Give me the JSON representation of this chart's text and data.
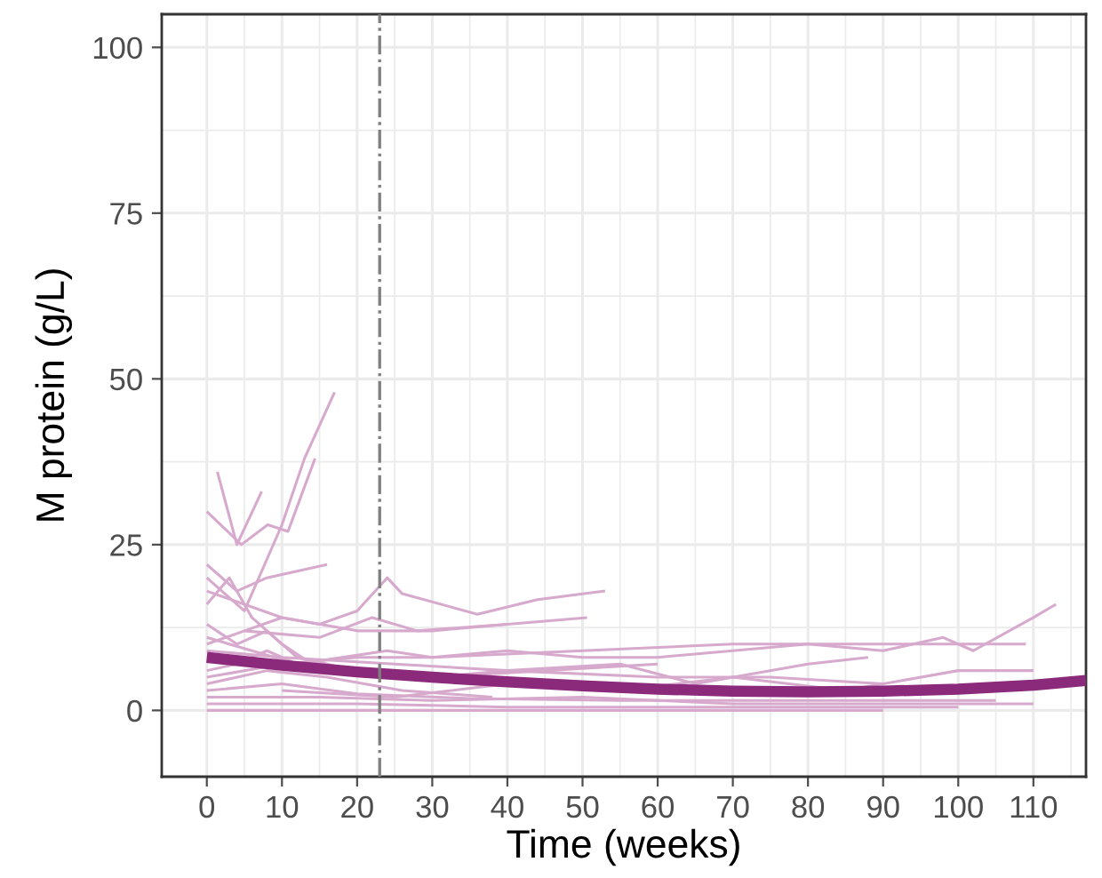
{
  "chart_data": {
    "type": "line",
    "xlabel": "Time (weeks)",
    "ylabel": "M protein (g/L)",
    "xlim": [
      -6,
      117
    ],
    "ylim": [
      -10,
      105
    ],
    "xticks": [
      0,
      10,
      20,
      30,
      40,
      50,
      60,
      70,
      80,
      90,
      100,
      110
    ],
    "yticks": [
      0,
      25,
      50,
      75,
      100
    ],
    "grid": true,
    "ref_lines": [
      {
        "axis": "x",
        "value": 23,
        "color": "#7f7f7f",
        "line_style": "dashdot"
      }
    ],
    "series": [
      {
        "color": "#d6a9cd",
        "x": [
          0,
          5,
          10,
          13,
          17
        ],
        "values": [
          20,
          15,
          28,
          38,
          48
        ]
      },
      {
        "color": "#d6a9cd",
        "x": [
          0,
          4.6,
          8.1,
          10.8,
          14.4
        ],
        "values": [
          30,
          25,
          28,
          27,
          38
        ]
      },
      {
        "color": "#d6a9cd",
        "x": [
          1.4,
          4,
          7.3
        ],
        "values": [
          36,
          25,
          33
        ]
      },
      {
        "color": "#d6a9cd",
        "x": [
          0,
          4,
          8,
          12,
          16
        ],
        "values": [
          22,
          18,
          20,
          21,
          22
        ]
      },
      {
        "color": "#d6a9cd",
        "x": [
          0,
          5,
          10,
          15,
          20,
          24,
          26,
          36,
          44,
          53
        ],
        "values": [
          10,
          12,
          14,
          13,
          15,
          20,
          17.6,
          14.5,
          16.7,
          18
        ]
      },
      {
        "color": "#d6a9cd",
        "x": [
          0,
          4,
          8,
          12,
          18,
          24,
          30,
          40,
          50,
          60,
          70,
          80,
          90,
          98,
          102,
          110,
          113
        ],
        "values": [
          6,
          7,
          9,
          7,
          8,
          9,
          8,
          9,
          8,
          8,
          9,
          10,
          9,
          11,
          9,
          14,
          16
        ]
      },
      {
        "color": "#d6a9cd",
        "x": [
          0,
          10,
          20,
          30,
          50,
          70,
          90,
          109
        ],
        "values": [
          5,
          7,
          8,
          8,
          9,
          10,
          10,
          10
        ]
      },
      {
        "color": "#d6a9cd",
        "x": [
          0,
          10,
          20,
          30,
          40,
          50.6
        ],
        "values": [
          18,
          14,
          12,
          12,
          13,
          14
        ]
      },
      {
        "color": "#d6a9cd",
        "x": [
          0,
          3,
          6,
          10,
          14
        ],
        "values": [
          16,
          20,
          14,
          10,
          7
        ]
      },
      {
        "color": "#d6a9cd",
        "x": [
          0,
          4,
          8,
          12,
          20,
          30
        ],
        "values": [
          13,
          10,
          12,
          8,
          6,
          5
        ]
      },
      {
        "color": "#d6a9cd",
        "x": [
          0,
          10,
          25,
          40,
          60,
          75,
          90
        ],
        "values": [
          9,
          8,
          7,
          6,
          5,
          5,
          4
        ]
      },
      {
        "color": "#d6a9cd",
        "x": [
          0,
          10,
          20,
          35,
          55,
          75,
          95,
          105
        ],
        "values": [
          3,
          4,
          2.5,
          1.8,
          1.5,
          1.5,
          1.5,
          1.5
        ]
      },
      {
        "color": "#d6a9cd",
        "x": [
          0,
          15,
          30,
          50,
          70,
          90,
          110
        ],
        "values": [
          2,
          2,
          1.5,
          2,
          1,
          1,
          1
        ]
      },
      {
        "color": "#d6a9cd",
        "x": [
          0,
          20,
          40,
          60,
          80,
          100
        ],
        "values": [
          1,
          1,
          0.5,
          0.5,
          0.5,
          0.5
        ]
      },
      {
        "color": "#d6a9cd",
        "x": [
          0,
          10,
          30,
          50,
          70,
          90
        ],
        "values": [
          0,
          0,
          0,
          0,
          0,
          0
        ]
      },
      {
        "color": "#d6a9cd",
        "x": [
          0,
          6,
          12,
          20,
          30,
          45,
          60
        ],
        "values": [
          11,
          9,
          7,
          6,
          5,
          6,
          7
        ]
      },
      {
        "color": "#d6a9cd",
        "x": [
          20,
          30,
          40,
          55,
          65,
          80,
          88
        ],
        "values": [
          6,
          5,
          6,
          7,
          4,
          7,
          8
        ]
      },
      {
        "color": "#d6a9cd",
        "x": [
          10,
          25,
          40,
          55,
          70,
          85,
          100,
          110
        ],
        "values": [
          3,
          2,
          4,
          3,
          5,
          3,
          6,
          6
        ]
      },
      {
        "color": "#d6a9cd",
        "x": [
          5,
          15,
          22,
          28,
          40
        ],
        "values": [
          12,
          11,
          14,
          12,
          13
        ]
      },
      {
        "color": "#d6a9cd",
        "x": [
          0,
          8,
          16,
          26,
          38
        ],
        "values": [
          4,
          6,
          5,
          3,
          2
        ]
      },
      {
        "color": "#8b2a7b",
        "x": [
          0,
          10,
          20,
          30,
          40,
          50,
          60,
          70,
          80,
          90,
          100,
          110,
          117
        ],
        "values": [
          8,
          6.8,
          5.8,
          5,
          4.3,
          3.7,
          3.2,
          2.9,
          2.8,
          2.9,
          3.2,
          3.8,
          4.5
        ]
      }
    ]
  }
}
